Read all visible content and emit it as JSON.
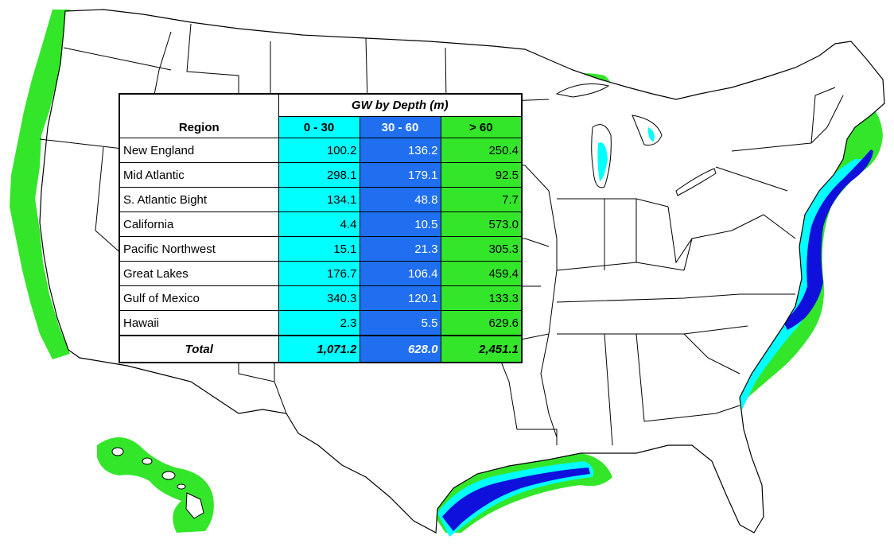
{
  "table": {
    "group_header": "GW by Depth (m)",
    "region_header": "Region",
    "depth_columns": [
      "0 - 30",
      "30 - 60",
      "> 60"
    ],
    "rows": [
      {
        "region": "New England",
        "values": [
          "100.2",
          "136.2",
          "250.4"
        ]
      },
      {
        "region": "Mid Atlantic",
        "values": [
          "298.1",
          "179.1",
          "92.5"
        ]
      },
      {
        "region": "S. Atlantic Bight",
        "values": [
          "134.1",
          "48.8",
          "7.7"
        ]
      },
      {
        "region": "California",
        "values": [
          "4.4",
          "10.5",
          "573.0"
        ]
      },
      {
        "region": "Pacific Northwest",
        "values": [
          "15.1",
          "21.3",
          "305.3"
        ]
      },
      {
        "region": "Great Lakes",
        "values": [
          "176.7",
          "106.4",
          "459.4"
        ]
      },
      {
        "region": "Gulf of Mexico",
        "values": [
          "340.3",
          "120.1",
          "133.3"
        ]
      },
      {
        "region": "Hawaii",
        "values": [
          "2.3",
          "5.5",
          "629.6"
        ]
      }
    ],
    "total": {
      "label": "Total",
      "values": [
        "1,071.2",
        "628.0",
        "2,451.1"
      ]
    }
  },
  "colors": {
    "depth_0_30": "#00ffff",
    "depth_30_60": "#1f6ff0",
    "depth_gt_60": "#33e62a",
    "deep_blue": "#1010dd",
    "map_outline": "#000000",
    "land": "#ffffff"
  }
}
